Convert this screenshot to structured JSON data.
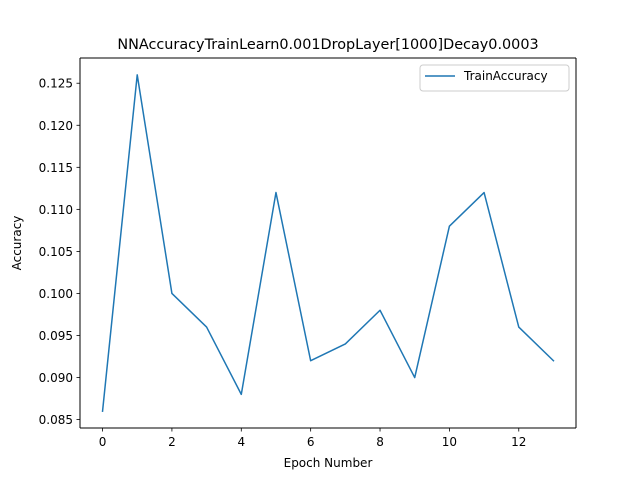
{
  "chart_data": {
    "type": "line",
    "title": "NNAccuracyTrainLearn0.001DropLayer[1000]Decay0.0003",
    "xlabel": "Epoch Number",
    "ylabel": "Accuracy",
    "xlim": [
      -0.65,
      13.65
    ],
    "ylim": [
      0.084,
      0.128
    ],
    "xticks": [
      0,
      2,
      4,
      6,
      8,
      10,
      12
    ],
    "xtick_labels": [
      "0",
      "2",
      "4",
      "6",
      "8",
      "10",
      "12"
    ],
    "yticks": [
      0.085,
      0.09,
      0.095,
      0.1,
      0.105,
      0.11,
      0.115,
      0.12,
      0.125
    ],
    "ytick_labels": [
      "0.085",
      "0.090",
      "0.095",
      "0.100",
      "0.105",
      "0.110",
      "0.115",
      "0.120",
      "0.125"
    ],
    "grid": false,
    "legend_position": "top-right",
    "series": [
      {
        "name": "TrainAccuracy",
        "color": "#1f77b4",
        "x": [
          0,
          1,
          2,
          3,
          4,
          5,
          6,
          7,
          8,
          9,
          10,
          11,
          12,
          13
        ],
        "y": [
          0.086,
          0.126,
          0.1,
          0.096,
          0.088,
          0.112,
          0.092,
          0.094,
          0.098,
          0.09,
          0.108,
          0.112,
          0.096,
          0.092
        ]
      }
    ]
  }
}
